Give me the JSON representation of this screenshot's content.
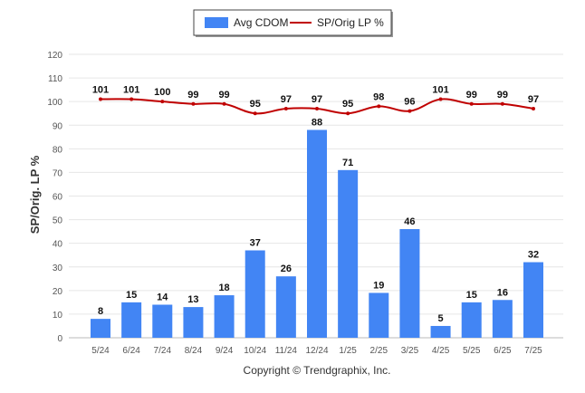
{
  "chart_data": {
    "type": "bar",
    "categories": [
      "5/24",
      "6/24",
      "7/24",
      "8/24",
      "9/24",
      "10/24",
      "11/24",
      "12/24",
      "1/25",
      "2/25",
      "3/25",
      "4/25",
      "5/25",
      "6/25",
      "7/25"
    ],
    "series": [
      {
        "name": "Avg CDOM",
        "type": "bar",
        "color": "#4285f4",
        "values": [
          8,
          15,
          14,
          13,
          18,
          37,
          26,
          88,
          71,
          19,
          46,
          5,
          15,
          16,
          32
        ]
      },
      {
        "name": "SP/Orig LP %",
        "type": "line",
        "color": "#c00000",
        "values": [
          101,
          101,
          100,
          99,
          99,
          95,
          97,
          97,
          95,
          98,
          96,
          101,
          99,
          99,
          97
        ]
      }
    ],
    "ylabel": "SP/Orig. LP %",
    "ylim": [
      0,
      120
    ],
    "yticks": [
      0,
      10,
      20,
      30,
      40,
      50,
      60,
      70,
      80,
      90,
      100,
      110,
      120
    ],
    "grid": true,
    "legend_position": "top-center"
  },
  "footer": {
    "copyright": "Copyright © Trendgraphix, Inc."
  }
}
